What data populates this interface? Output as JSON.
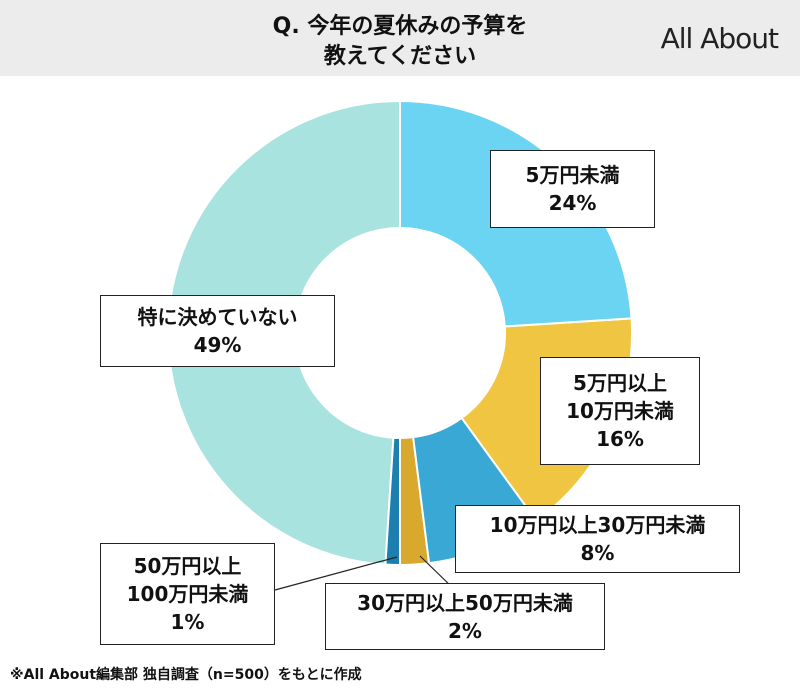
{
  "title": [
    "Q. 今年の夏休みの予算を",
    "教えてください"
  ],
  "logo": "All About",
  "chart_data": {
    "type": "donut",
    "categories": [
      "5万円未満",
      "5万円以上\n10万円未満",
      "10万円以上30万円未満",
      "30万円以上50万円未満",
      "50万円以上\n100万円未満",
      "特に決めていない"
    ],
    "values": [
      24,
      16,
      8,
      2,
      1,
      49
    ],
    "value_labels": [
      "24%",
      "16%",
      "8%",
      "2%",
      "1%",
      "49%"
    ],
    "colors": [
      "#6ad4f2",
      "#f0c542",
      "#3aa8d4",
      "#d9a92e",
      "#1d7fb0",
      "#a8e3df"
    ]
  },
  "note": "※All About編集部 独自調査（n=500）をもとに作成"
}
